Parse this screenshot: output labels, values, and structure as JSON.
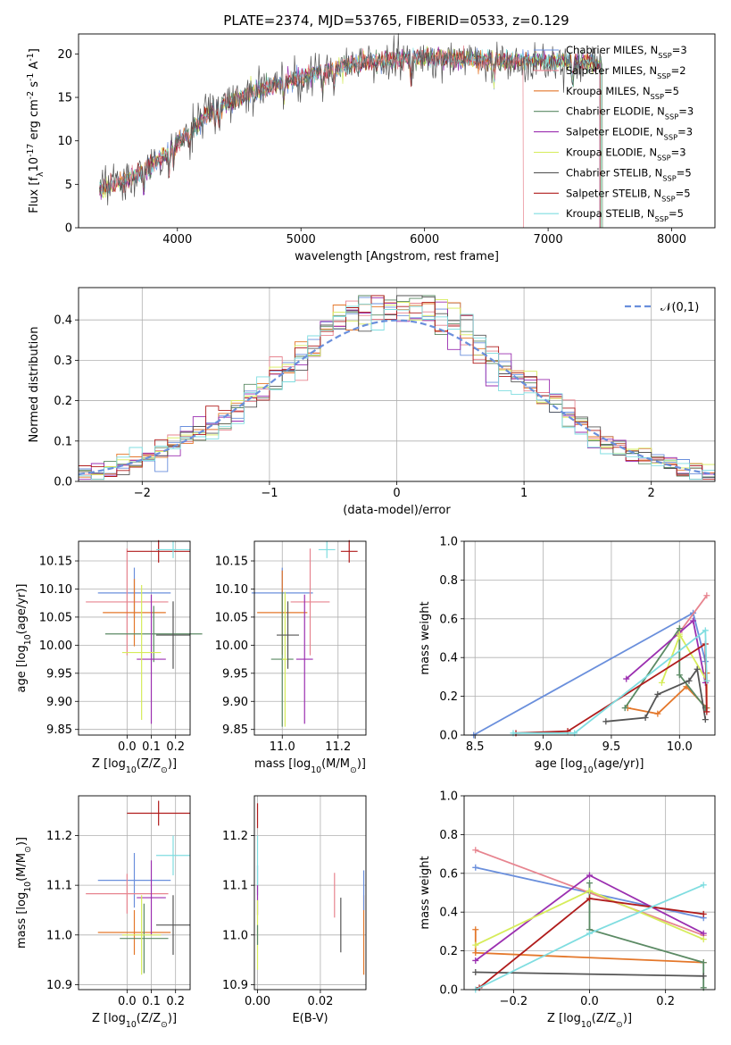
{
  "figure": {
    "title": "PLATE=2374, MJD=53765, FIBERID=0533, z=0.129"
  },
  "legend_entries": [
    {
      "label": "Chabrier MILES, N$_{SSP}$=3",
      "color": "#6a8fdc"
    },
    {
      "label": "Salpeter MILES, N$_{SSP}$=2",
      "color": "#e7848f"
    },
    {
      "label": "Kroupa MILES, N$_{SSP}$=5",
      "color": "#e4772a"
    },
    {
      "label": "Chabrier ELODIE, N$_{SSP}$=3",
      "color": "#5b8a64"
    },
    {
      "label": "Salpeter ELODIE, N$_{SSP}$=3",
      "color": "#9b2fb0"
    },
    {
      "label": "Kroupa ELODIE, N$_{SSP}$=3",
      "color": "#d6ec5a"
    },
    {
      "label": "Chabrier STELIB, N$_{SSP}$=5",
      "color": "#555555"
    },
    {
      "label": "Salpeter STELIB, N$_{SSP}$=5",
      "color": "#b01c1c"
    },
    {
      "label": "Kroupa STELIB, N$_{SSP}$=5",
      "color": "#7fdde0"
    }
  ],
  "chart_data": [
    {
      "id": "spectrum",
      "type": "line",
      "xlabel": "wavelength [Angstrom, rest frame]",
      "ylabel": "Flux [f$_\\lambda$10$^{-17}$ erg cm$^{-2}$ s$^{-1}$ A$^{-1}$]",
      "xlim": [
        3200,
        8350
      ],
      "ylim": [
        0,
        22.3
      ],
      "xticks": [
        4000,
        5000,
        6000,
        7000,
        8000
      ],
      "yticks": [
        0,
        5,
        10,
        15,
        20
      ],
      "continuum": {
        "x": [
          3370,
          3500,
          3700,
          3900,
          4100,
          4300,
          4600,
          5000,
          5300,
          5600,
          6000,
          6400,
          6800,
          7200,
          7500,
          7800,
          8000
        ],
        "y": [
          4.6,
          5.0,
          6.3,
          8.4,
          11.2,
          13.8,
          15.5,
          17.3,
          18.5,
          19.2,
          19.6,
          19.3,
          19.2,
          19.1,
          18.8,
          18.9,
          19.2
        ]
      },
      "model_cutoffs": [
        7420,
        6800,
        7430,
        7440,
        7420,
        7430,
        7440,
        7420,
        7430
      ]
    },
    {
      "id": "residuals",
      "type": "histogram",
      "xlabel": "(data-model)/error",
      "ylabel": "Normed distribution",
      "xlim": [
        -2.5,
        2.5
      ],
      "ylim": [
        0,
        0.48
      ],
      "xticks": [
        -2,
        -1,
        0,
        1,
        2
      ],
      "yticks": [
        0.0,
        0.1,
        0.2,
        0.3,
        0.4
      ],
      "bin_width": 0.1,
      "grid": true,
      "reference": {
        "label": "$\\mathcal{N}(0,1)$",
        "color": "#6a8fdc"
      }
    },
    {
      "id": "age_vs_Z",
      "type": "errorbar",
      "xlabel": "Z [log$_{10}$($Z/Z_\\odot$)]",
      "ylabel": "age  [log$_{10}$($age/yr$)]",
      "xlim": [
        -0.2,
        0.26
      ],
      "ylim": [
        9.84,
        10.185
      ],
      "xticks": [
        0.0,
        0.1,
        0.2
      ],
      "yticks": [
        9.85,
        9.9,
        9.95,
        10.0,
        10.05,
        10.1,
        10.15
      ],
      "grid": true,
      "points": [
        {
          "x": 0.03,
          "xerr": 0.15,
          "y": 10.093,
          "yerr": 0.045,
          "color": "#6a8fdc"
        },
        {
          "x": 0.0,
          "xerr": 0.17,
          "y": 10.077,
          "yerr": 0.095,
          "color": "#e7848f"
        },
        {
          "x": 0.03,
          "xerr": 0.13,
          "y": 10.058,
          "yerr": 0.06,
          "color": "#e4772a"
        },
        {
          "x": 0.11,
          "xerr": 0.2,
          "y": 10.02,
          "yerr": 0.05,
          "color": "#5b8a64"
        },
        {
          "x": 0.1,
          "xerr": 0.06,
          "y": 9.975,
          "yerr": 0.115,
          "color": "#9b2fb0"
        },
        {
          "x": 0.06,
          "xerr": 0.08,
          "y": 9.987,
          "yerr": 0.12,
          "color": "#d6ec5a"
        },
        {
          "x": 0.19,
          "xerr": 0.07,
          "y": 10.018,
          "yerr": 0.06,
          "color": "#555555"
        },
        {
          "x": 0.13,
          "xerr": 0.13,
          "y": 10.167,
          "yerr": 0.02,
          "color": "#b01c1c"
        },
        {
          "x": 0.19,
          "xerr": 0.07,
          "y": 10.17,
          "yerr": 0.015,
          "color": "#7fdde0"
        }
      ]
    },
    {
      "id": "age_vs_mass",
      "type": "errorbar",
      "xlabel": "mass [log$_{10}$($M/M_\\odot$)]",
      "ylabel": "",
      "xlim": [
        10.9,
        11.3
      ],
      "ylim": [
        9.84,
        10.185
      ],
      "xticks": [
        11.0,
        11.2
      ],
      "yticks": [
        9.85,
        9.9,
        9.95,
        10.0,
        10.05,
        10.1,
        10.15
      ],
      "grid": true,
      "points": [
        {
          "x": 11.0,
          "xerr": 0.11,
          "y": 10.093,
          "yerr": 0.045,
          "color": "#6a8fdc"
        },
        {
          "x": 11.1,
          "xerr": 0.07,
          "y": 10.077,
          "yerr": 0.095,
          "color": "#e7848f"
        },
        {
          "x": 11.0,
          "xerr": 0.09,
          "y": 10.058,
          "yerr": 0.075,
          "color": "#e4772a"
        },
        {
          "x": 11.0,
          "xerr": 0.04,
          "y": 9.975,
          "yerr": 0.12,
          "color": "#5b8a64"
        },
        {
          "x": 11.08,
          "xerr": 0.03,
          "y": 9.975,
          "yerr": 0.115,
          "color": "#9b2fb0"
        },
        {
          "x": 11.01,
          "xerr": 0.01,
          "y": 9.975,
          "yerr": 0.12,
          "color": "#d6ec5a"
        },
        {
          "x": 11.02,
          "xerr": 0.04,
          "y": 10.018,
          "yerr": 0.06,
          "color": "#555555"
        },
        {
          "x": 11.24,
          "xerr": 0.03,
          "y": 10.167,
          "yerr": 0.02,
          "color": "#b01c1c"
        },
        {
          "x": 11.16,
          "xerr": 0.03,
          "y": 10.17,
          "yerr": 0.015,
          "color": "#7fdde0"
        }
      ]
    },
    {
      "id": "weight_vs_age",
      "type": "line",
      "xlabel": "age  [log$_{10}$($age/yr$)]",
      "ylabel": "mass weight",
      "xlim": [
        8.42,
        10.26
      ],
      "ylim": [
        0,
        1
      ],
      "xticks": [
        8.5,
        9.0,
        9.5,
        10.0
      ],
      "yticks": [
        0.0,
        0.2,
        0.4,
        0.6,
        0.8,
        1.0
      ],
      "grid": true,
      "series": [
        {
          "color": "#6a8fdc",
          "x": [
            8.49,
            10.1,
            10.19
          ],
          "y": [
            0.0,
            0.63,
            0.38
          ]
        },
        {
          "color": "#e7848f",
          "x": [
            10.0,
            10.2
          ],
          "y": [
            0.53,
            0.72
          ]
        },
        {
          "color": "#e4772a",
          "x": [
            9.62,
            9.84,
            10.05,
            10.2,
            10.2
          ],
          "y": [
            0.14,
            0.11,
            0.25,
            0.14,
            0.32
          ]
        },
        {
          "color": "#5b8a64",
          "x": [
            9.6,
            10.0,
            10.0,
            10.19
          ],
          "y": [
            0.14,
            0.55,
            0.31,
            0.14
          ]
        },
        {
          "color": "#9b2fb0",
          "x": [
            9.61,
            10.1,
            10.19
          ],
          "y": [
            0.29,
            0.59,
            0.27
          ]
        },
        {
          "color": "#d6ec5a",
          "x": [
            9.87,
            10.0,
            10.0,
            10.2
          ],
          "y": [
            0.27,
            0.51,
            0.52,
            0.28
          ]
        },
        {
          "color": "#555555",
          "x": [
            9.46,
            9.75,
            9.84,
            10.07,
            10.13,
            10.19
          ],
          "y": [
            0.07,
            0.09,
            0.21,
            0.28,
            0.34,
            0.08
          ]
        },
        {
          "color": "#b01c1c",
          "x": [
            8.8,
            9.18,
            10.19,
            10.2
          ],
          "y": [
            0.01,
            0.02,
            0.47,
            0.12
          ]
        },
        {
          "color": "#7fdde0",
          "x": [
            8.78,
            9.23,
            10.19,
            10.2
          ],
          "y": [
            0.01,
            0.01,
            0.54,
            0.28
          ]
        }
      ]
    },
    {
      "id": "mass_vs_Z",
      "type": "errorbar",
      "xlabel": "Z [log$_{10}$($Z/Z_\\odot$)]",
      "ylabel": "mass [log$_{10}$($M/M_\\odot$)]",
      "xlim": [
        -0.2,
        0.26
      ],
      "ylim": [
        10.89,
        11.28
      ],
      "xticks": [
        0.0,
        0.1,
        0.2
      ],
      "yticks": [
        10.9,
        11.0,
        11.1,
        11.2
      ],
      "grid": true,
      "points": [
        {
          "x": 0.03,
          "xerr": 0.15,
          "y": 11.11,
          "yerr": 0.055,
          "color": "#6a8fdc"
        },
        {
          "x": 0.0,
          "xerr": 0.17,
          "y": 11.083,
          "yerr": 0.04,
          "color": "#e7848f"
        },
        {
          "x": 0.03,
          "xerr": 0.15,
          "y": 11.005,
          "yerr": 0.045,
          "color": "#e4772a"
        },
        {
          "x": 0.07,
          "xerr": 0.1,
          "y": 10.993,
          "yerr": 0.07,
          "color": "#5b8a64"
        },
        {
          "x": 0.1,
          "xerr": 0.06,
          "y": 11.075,
          "yerr": 0.075,
          "color": "#9b2fb0"
        },
        {
          "x": 0.06,
          "xerr": 0.08,
          "y": 11.0,
          "yerr": 0.08,
          "color": "#d6ec5a"
        },
        {
          "x": 0.19,
          "xerr": 0.07,
          "y": 11.02,
          "yerr": 0.06,
          "color": "#555555"
        },
        {
          "x": 0.13,
          "xerr": 0.13,
          "y": 11.245,
          "yerr": 0.025,
          "color": "#b01c1c"
        },
        {
          "x": 0.19,
          "xerr": 0.07,
          "y": 11.16,
          "yerr": 0.04,
          "color": "#7fdde0"
        }
      ]
    },
    {
      "id": "mass_vs_ebv",
      "type": "errorbar",
      "xlabel": "E(B-V)",
      "ylabel": "",
      "xlim": [
        -0.001,
        0.0345
      ],
      "ylim": [
        10.89,
        11.28
      ],
      "xticks": [
        0.0,
        0.02
      ],
      "yticks": [
        10.9,
        11.0,
        11.1,
        11.2
      ],
      "grid": true,
      "points": [
        {
          "x": 0.0,
          "y": 11.11,
          "yerr": 0.03,
          "color": "#6a8fdc"
        },
        {
          "x": 0.0,
          "y": 11.24,
          "yerr": 0.025,
          "color": "#b01c1c"
        },
        {
          "x": 0.0,
          "y": 11.15,
          "yerr": 0.05,
          "color": "#7fdde0"
        },
        {
          "x": 0.0,
          "y": 11.07,
          "yerr": 0.03,
          "color": "#9b2fb0"
        },
        {
          "x": 0.0,
          "y": 11.0,
          "yerr": 0.07,
          "color": "#d6ec5a"
        },
        {
          "x": 0.0,
          "y": 11.0,
          "yerr": 0.02,
          "color": "#5b8a64"
        },
        {
          "x": 0.0245,
          "y": 11.08,
          "yerr": 0.045,
          "color": "#e7848f"
        },
        {
          "x": 0.0265,
          "y": 11.02,
          "yerr": 0.055,
          "color": "#555555"
        },
        {
          "x": 0.0338,
          "y": 11.0,
          "yerr": 0.08,
          "color": "#e4772a"
        },
        {
          "x": 0.0338,
          "y": 11.09,
          "yerr": 0.04,
          "color": "#6a8fdc"
        }
      ]
    },
    {
      "id": "weight_vs_Z",
      "type": "line",
      "xlabel": "Z [log$_{10}$($Z/Z_\\odot$)]",
      "ylabel": "mass weight",
      "xlim": [
        -0.33,
        0.33
      ],
      "ylim": [
        0,
        1
      ],
      "xticks": [
        -0.2,
        0.0,
        0.2
      ],
      "yticks": [
        0.0,
        0.2,
        0.4,
        0.6,
        0.8,
        1.0
      ],
      "grid": true,
      "series": [
        {
          "color": "#6a8fdc",
          "x": [
            -0.3,
            0.0,
            0.3
          ],
          "y": [
            0.63,
            0.5,
            0.37
          ]
        },
        {
          "color": "#e7848f",
          "x": [
            -0.3,
            0.3
          ],
          "y": [
            0.72,
            0.28
          ]
        },
        {
          "color": "#e4772a",
          "x": [
            -0.3,
            -0.3,
            0.3
          ],
          "y": [
            0.31,
            0.19,
            0.14
          ]
        },
        {
          "color": "#5b8a64",
          "x": [
            0.0,
            0.0,
            0.3,
            0.3
          ],
          "y": [
            0.55,
            0.31,
            0.14,
            0.01
          ]
        },
        {
          "color": "#9b2fb0",
          "x": [
            -0.3,
            0.0,
            0.3
          ],
          "y": [
            0.15,
            0.59,
            0.29
          ]
        },
        {
          "color": "#d6ec5a",
          "x": [
            -0.3,
            0.0,
            0.3
          ],
          "y": [
            0.23,
            0.51,
            0.26
          ]
        },
        {
          "color": "#555555",
          "x": [
            -0.3,
            0.3
          ],
          "y": [
            0.09,
            0.07
          ]
        },
        {
          "color": "#b01c1c",
          "x": [
            -0.29,
            0.0,
            0.3
          ],
          "y": [
            0.01,
            0.47,
            0.39
          ]
        },
        {
          "color": "#7fdde0",
          "x": [
            -0.3,
            0.0,
            0.3
          ],
          "y": [
            0.0,
            0.29,
            0.54
          ]
        }
      ]
    }
  ]
}
